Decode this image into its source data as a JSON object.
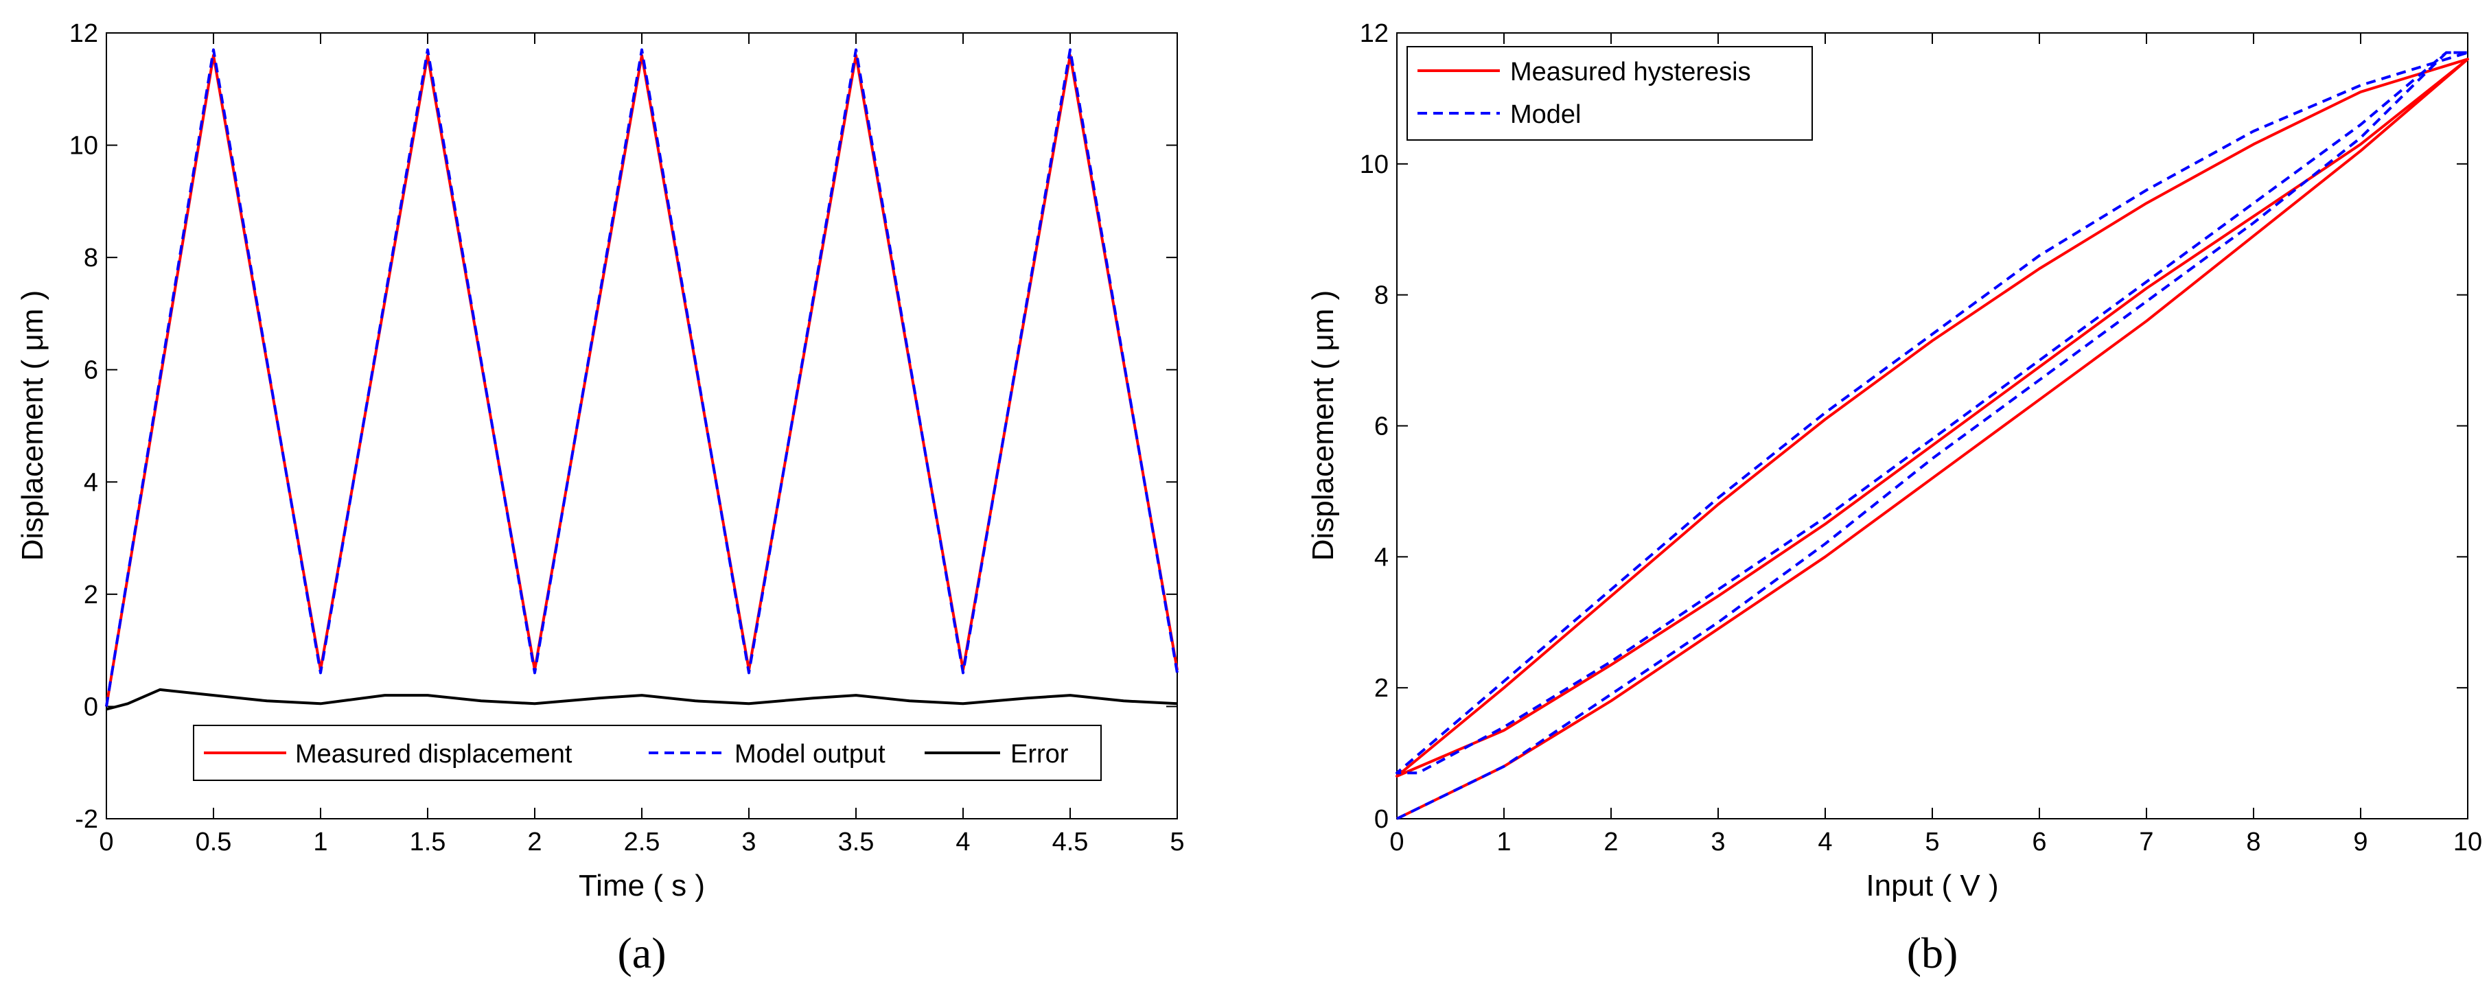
{
  "chart_data": [
    {
      "type": "line",
      "panel": "(a)",
      "xlabel": "Time ( s )",
      "ylabel": "Displacement ( μm )",
      "xlim": [
        0,
        5
      ],
      "ylim": [
        -2,
        12
      ],
      "xticks": [
        "0",
        "0.5",
        "1",
        "1.5",
        "2",
        "2.5",
        "3",
        "3.5",
        "4",
        "4.5",
        "5"
      ],
      "yticks": [
        "-2",
        "0",
        "2",
        "4",
        "6",
        "8",
        "10",
        "12"
      ],
      "legend_position": "bottom-center",
      "series": [
        {
          "name": "Measured displacement",
          "color": "#ff0000",
          "style": "solid",
          "x": [
            0,
            0.5,
            1.0,
            1.5,
            2.0,
            2.5,
            3.0,
            3.5,
            4.0,
            4.5,
            5.0
          ],
          "y": [
            0,
            11.6,
            0.65,
            11.6,
            0.65,
            11.6,
            0.65,
            11.6,
            0.65,
            11.6,
            0.65
          ]
        },
        {
          "name": "Model output",
          "color": "#0000ff",
          "style": "dashed",
          "x": [
            0,
            0.5,
            1.0,
            1.5,
            2.0,
            2.5,
            3.0,
            3.5,
            4.0,
            4.5,
            5.0
          ],
          "y": [
            0,
            11.7,
            0.6,
            11.7,
            0.6,
            11.7,
            0.6,
            11.7,
            0.6,
            11.7,
            0.6
          ]
        },
        {
          "name": "Error",
          "color": "#000000",
          "style": "solid",
          "x": [
            0,
            0.1,
            0.25,
            0.5,
            0.75,
            1.0,
            1.3,
            1.5,
            1.75,
            2.0,
            2.3,
            2.5,
            2.75,
            3.0,
            3.3,
            3.5,
            3.75,
            4.0,
            4.3,
            4.5,
            4.75,
            5.0
          ],
          "y": [
            -0.05,
            0.05,
            0.3,
            0.2,
            0.1,
            0.05,
            0.2,
            0.2,
            0.1,
            0.05,
            0.15,
            0.2,
            0.1,
            0.05,
            0.15,
            0.2,
            0.1,
            0.05,
            0.15,
            0.2,
            0.1,
            0.05
          ]
        }
      ]
    },
    {
      "type": "line",
      "panel": "(b)",
      "xlabel": "Input ( V )",
      "ylabel": "Displacement ( μm )",
      "xlim": [
        0,
        10
      ],
      "ylim": [
        0,
        12
      ],
      "xticks": [
        "0",
        "1",
        "2",
        "3",
        "4",
        "5",
        "6",
        "7",
        "8",
        "9",
        "10"
      ],
      "yticks": [
        "0",
        "2",
        "4",
        "6",
        "8",
        "10",
        "12"
      ],
      "legend_position": "top-left",
      "series": [
        {
          "name": "Measured hysteresis",
          "color": "#ff0000",
          "style": "solid",
          "x": [
            0,
            1,
            2,
            3,
            4,
            5,
            6,
            7,
            8,
            9,
            10,
            9,
            8,
            7,
            6,
            5,
            4,
            3,
            2,
            1,
            0,
            1,
            2,
            3,
            4,
            5,
            6,
            7,
            8,
            9,
            10
          ],
          "y": [
            0,
            0.8,
            1.8,
            2.9,
            4.0,
            5.2,
            6.4,
            7.6,
            8.9,
            10.2,
            11.6,
            11.1,
            10.3,
            9.4,
            8.4,
            7.3,
            6.1,
            4.8,
            3.4,
            2.0,
            0.65,
            1.35,
            2.35,
            3.4,
            4.5,
            5.7,
            6.9,
            8.1,
            9.2,
            10.3,
            11.6
          ]
        },
        {
          "name": "Model",
          "color": "#0000ff",
          "style": "dashed",
          "x": [
            0,
            1,
            2,
            3,
            4,
            5,
            6,
            7,
            8,
            9,
            9.8,
            10,
            9,
            8,
            7,
            6,
            5,
            4,
            3,
            2,
            1,
            0,
            0.2,
            1,
            2,
            3,
            4,
            5,
            6,
            7,
            8,
            9,
            9.8,
            10
          ],
          "y": [
            0,
            0.8,
            1.9,
            3.0,
            4.2,
            5.5,
            6.7,
            7.9,
            9.1,
            10.4,
            11.7,
            11.7,
            11.2,
            10.5,
            9.6,
            8.6,
            7.4,
            6.2,
            4.9,
            3.5,
            2.1,
            0.7,
            0.7,
            1.4,
            2.4,
            3.5,
            4.6,
            5.8,
            7.0,
            8.2,
            9.4,
            10.6,
            11.7,
            11.7
          ]
        }
      ]
    }
  ],
  "captions": {
    "a": "(a)",
    "b": "(b)"
  }
}
